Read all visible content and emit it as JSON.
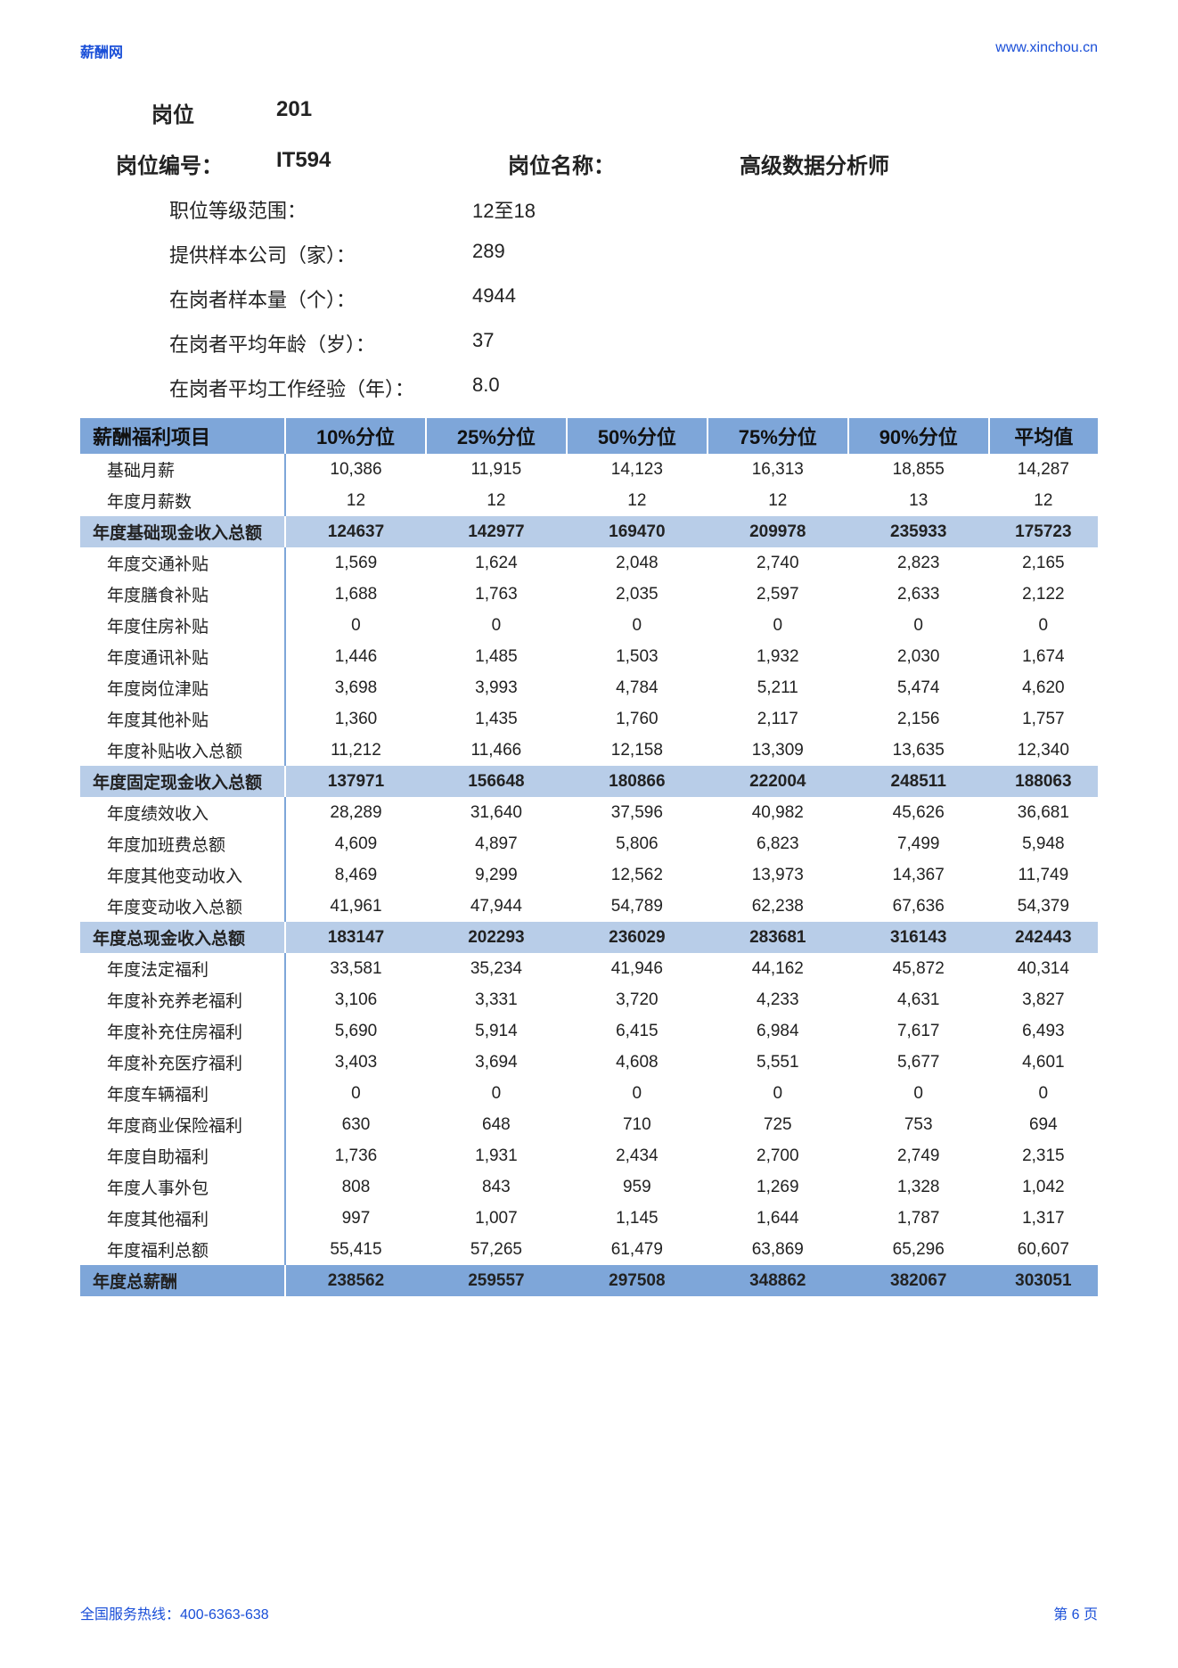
{
  "colors": {
    "link": "#1a4fd8",
    "header_bg": "#7ea6d9",
    "subtotal_bg": "#b8cde8",
    "text": "#222222",
    "page_bg": "#ffffff"
  },
  "top": {
    "left": "薪酬网",
    "right": "www.xinchou.cn"
  },
  "header": {
    "position_label": "岗位",
    "position_num": "201",
    "code_label": "岗位编号：",
    "code_value": "IT594",
    "name_label": "岗位名称：",
    "name_value": "高级数据分析师"
  },
  "info": [
    {
      "label": "职位等级范围：",
      "value": "12至18"
    },
    {
      "label": "提供样本公司（家）：",
      "value": "289"
    },
    {
      "label": "在岗者样本量（个）：",
      "value": "4944"
    },
    {
      "label": "在岗者平均年龄（岁）：",
      "value": "37"
    },
    {
      "label": "在岗者平均工作经验（年）：",
      "value": "8.0"
    }
  ],
  "table": {
    "columns": [
      "薪酬福利项目",
      "10%分位",
      "25%分位",
      "50%分位",
      "75%分位",
      "90%分位",
      "平均值"
    ],
    "column_widths": [
      "230px",
      "auto",
      "auto",
      "auto",
      "auto",
      "auto",
      "auto"
    ],
    "rows": [
      {
        "type": "data",
        "cells": [
          "基础月薪",
          "10,386",
          "11,915",
          "14,123",
          "16,313",
          "18,855",
          "14,287"
        ]
      },
      {
        "type": "data",
        "cells": [
          "年度月薪数",
          "12",
          "12",
          "12",
          "12",
          "13",
          "12"
        ]
      },
      {
        "type": "subtotal",
        "cells": [
          "年度基础现金收入总额",
          "124637",
          "142977",
          "169470",
          "209978",
          "235933",
          "175723"
        ]
      },
      {
        "type": "data",
        "cells": [
          "年度交通补贴",
          "1,569",
          "1,624",
          "2,048",
          "2,740",
          "2,823",
          "2,165"
        ]
      },
      {
        "type": "data",
        "cells": [
          "年度膳食补贴",
          "1,688",
          "1,763",
          "2,035",
          "2,597",
          "2,633",
          "2,122"
        ]
      },
      {
        "type": "data",
        "cells": [
          "年度住房补贴",
          "0",
          "0",
          "0",
          "0",
          "0",
          "0"
        ]
      },
      {
        "type": "data",
        "cells": [
          "年度通讯补贴",
          "1,446",
          "1,485",
          "1,503",
          "1,932",
          "2,030",
          "1,674"
        ]
      },
      {
        "type": "data",
        "cells": [
          "年度岗位津贴",
          "3,698",
          "3,993",
          "4,784",
          "5,211",
          "5,474",
          "4,620"
        ]
      },
      {
        "type": "data",
        "cells": [
          "年度其他补贴",
          "1,360",
          "1,435",
          "1,760",
          "2,117",
          "2,156",
          "1,757"
        ]
      },
      {
        "type": "data",
        "cells": [
          "年度补贴收入总额",
          "11,212",
          "11,466",
          "12,158",
          "13,309",
          "13,635",
          "12,340"
        ]
      },
      {
        "type": "subtotal",
        "cells": [
          "年度固定现金收入总额",
          "137971",
          "156648",
          "180866",
          "222004",
          "248511",
          "188063"
        ]
      },
      {
        "type": "data",
        "cells": [
          "年度绩效收入",
          "28,289",
          "31,640",
          "37,596",
          "40,982",
          "45,626",
          "36,681"
        ]
      },
      {
        "type": "data",
        "cells": [
          "年度加班费总额",
          "4,609",
          "4,897",
          "5,806",
          "6,823",
          "7,499",
          "5,948"
        ]
      },
      {
        "type": "data",
        "cells": [
          "年度其他变动收入",
          "8,469",
          "9,299",
          "12,562",
          "13,973",
          "14,367",
          "11,749"
        ]
      },
      {
        "type": "data",
        "cells": [
          "年度变动收入总额",
          "41,961",
          "47,944",
          "54,789",
          "62,238",
          "67,636",
          "54,379"
        ]
      },
      {
        "type": "subtotal",
        "cells": [
          "年度总现金收入总额",
          "183147",
          "202293",
          "236029",
          "283681",
          "316143",
          "242443"
        ]
      },
      {
        "type": "data",
        "cells": [
          "年度法定福利",
          "33,581",
          "35,234",
          "41,946",
          "44,162",
          "45,872",
          "40,314"
        ]
      },
      {
        "type": "data",
        "cells": [
          "年度补充养老福利",
          "3,106",
          "3,331",
          "3,720",
          "4,233",
          "4,631",
          "3,827"
        ]
      },
      {
        "type": "data",
        "cells": [
          "年度补充住房福利",
          "5,690",
          "5,914",
          "6,415",
          "6,984",
          "7,617",
          "6,493"
        ]
      },
      {
        "type": "data",
        "cells": [
          "年度补充医疗福利",
          "3,403",
          "3,694",
          "4,608",
          "5,551",
          "5,677",
          "4,601"
        ]
      },
      {
        "type": "data",
        "cells": [
          "年度车辆福利",
          "0",
          "0",
          "0",
          "0",
          "0",
          "0"
        ]
      },
      {
        "type": "data",
        "cells": [
          "年度商业保险福利",
          "630",
          "648",
          "710",
          "725",
          "753",
          "694"
        ]
      },
      {
        "type": "data",
        "cells": [
          "年度自助福利",
          "1,736",
          "1,931",
          "2,434",
          "2,700",
          "2,749",
          "2,315"
        ]
      },
      {
        "type": "data",
        "cells": [
          "年度人事外包",
          "808",
          "843",
          "959",
          "1,269",
          "1,328",
          "1,042"
        ]
      },
      {
        "type": "data",
        "cells": [
          "年度其他福利",
          "997",
          "1,007",
          "1,145",
          "1,644",
          "1,787",
          "1,317"
        ]
      },
      {
        "type": "data",
        "cells": [
          "年度福利总额",
          "55,415",
          "57,265",
          "61,479",
          "63,869",
          "65,296",
          "60,607"
        ]
      },
      {
        "type": "grand",
        "cells": [
          "年度总薪酬",
          "238562",
          "259557",
          "297508",
          "348862",
          "382067",
          "303051"
        ]
      }
    ]
  },
  "footer": {
    "left": "全国服务热线：400-6363-638",
    "right": "第 6 页"
  }
}
